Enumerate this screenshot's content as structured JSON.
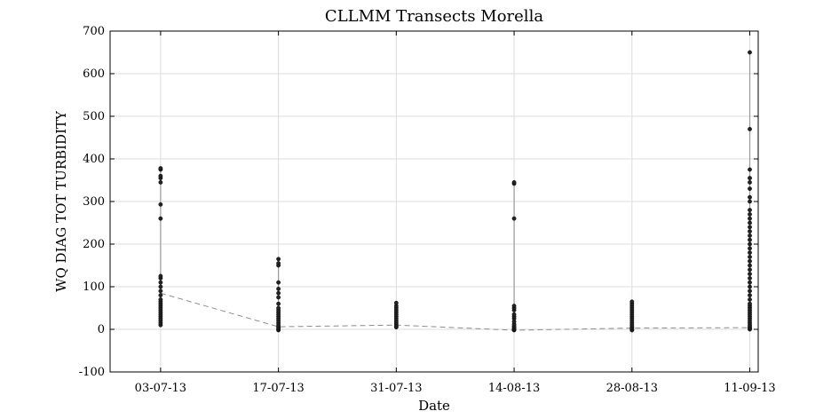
{
  "chart_data": {
    "type": "scatter",
    "title": "CLLMM Transects Morella",
    "xlabel": "Date",
    "ylabel": "WQ DIAG TOT TURBIDITY",
    "ylim": [
      -100,
      700
    ],
    "xlim": [
      "2013-06-27",
      "2013-09-12"
    ],
    "yticks": [
      -100,
      0,
      100,
      200,
      300,
      400,
      500,
      600,
      700
    ],
    "xticks": [
      {
        "date": "2013-07-03",
        "label": "03-07-13"
      },
      {
        "date": "2013-07-17",
        "label": "17-07-13"
      },
      {
        "date": "2013-07-31",
        "label": "31-07-13"
      },
      {
        "date": "2013-08-14",
        "label": "14-08-13"
      },
      {
        "date": "2013-08-28",
        "label": "28-08-13"
      },
      {
        "date": "2013-09-11",
        "label": "11-09-13"
      }
    ],
    "grid": true,
    "series": [
      {
        "style": "dashed-line",
        "color": "#8c8c8c",
        "x": [
          "2013-07-03",
          "2013-07-17",
          "2013-07-31",
          "2013-08-14",
          "2013-08-28",
          "2013-09-11"
        ],
        "y": [
          85,
          6,
          10,
          -2,
          3,
          4
        ]
      },
      {
        "style": "points",
        "color": "#222222",
        "samples": [
          {
            "date": "2013-07-03",
            "y": [
              10,
              15,
              20,
              25,
              30,
              35,
              40,
              45,
              50,
              55,
              60,
              65,
              70,
              80,
              90,
              100,
              110,
              120,
              125,
              260,
              293,
              345,
              355,
              360,
              375,
              378
            ]
          },
          {
            "date": "2013-07-17",
            "y": [
              -2,
              0,
              3,
              6,
              10,
              15,
              20,
              25,
              30,
              35,
              40,
              45,
              50,
              60,
              75,
              85,
              95,
              110,
              150,
              155,
              165
            ]
          },
          {
            "date": "2013-07-31",
            "y": [
              5,
              8,
              12,
              16,
              20,
              25,
              30,
              35,
              40,
              45,
              50,
              55,
              62
            ]
          },
          {
            "date": "2013-08-14",
            "y": [
              -2,
              0,
              2,
              5,
              8,
              12,
              18,
              25,
              30,
              35,
              45,
              50,
              55,
              260,
              342,
              345
            ]
          },
          {
            "date": "2013-08-28",
            "y": [
              -2,
              0,
              3,
              6,
              10,
              15,
              20,
              25,
              30,
              35,
              40,
              45,
              50,
              55,
              60,
              65
            ]
          },
          {
            "date": "2013-09-11",
            "y": [
              0,
              3,
              6,
              10,
              15,
              20,
              25,
              30,
              35,
              40,
              45,
              50,
              55,
              60,
              70,
              80,
              90,
              100,
              110,
              120,
              130,
              140,
              150,
              160,
              170,
              180,
              190,
              200,
              210,
              220,
              230,
              240,
              250,
              260,
              270,
              280,
              300,
              310,
              330,
              345,
              355,
              375,
              470,
              650
            ]
          }
        ]
      }
    ]
  }
}
